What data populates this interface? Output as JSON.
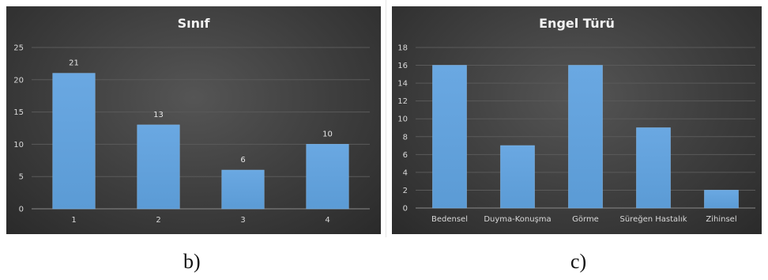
{
  "chart_data": [
    {
      "type": "bar",
      "title": "Sınıf",
      "categories": [
        "1",
        "2",
        "3",
        "4"
      ],
      "values": [
        21,
        13,
        6,
        10
      ],
      "data_labels": [
        "21",
        "13",
        "6",
        "10"
      ],
      "ylim": [
        0,
        25
      ],
      "yticks": [
        "0",
        "5",
        "10",
        "15",
        "20",
        "25"
      ],
      "grid": true,
      "legend": "none",
      "bar_color": "#5b9bd5",
      "background": "#3f3f3f"
    },
    {
      "type": "bar",
      "title": "Engel Türü",
      "categories": [
        "Bedensel",
        "Duyma-Konuşma",
        "Görme",
        "Süreğen Hastalık",
        "Zihinsel"
      ],
      "values": [
        16,
        7,
        16,
        9,
        2
      ],
      "ylim": [
        0,
        18
      ],
      "yticks": [
        "0",
        "2",
        "4",
        "6",
        "8",
        "10",
        "12",
        "14",
        "16",
        "18"
      ],
      "grid": true,
      "legend": "none",
      "bar_color": "#5b9bd5",
      "background": "#3f3f3f"
    }
  ],
  "captions": [
    "b)",
    "c)"
  ]
}
